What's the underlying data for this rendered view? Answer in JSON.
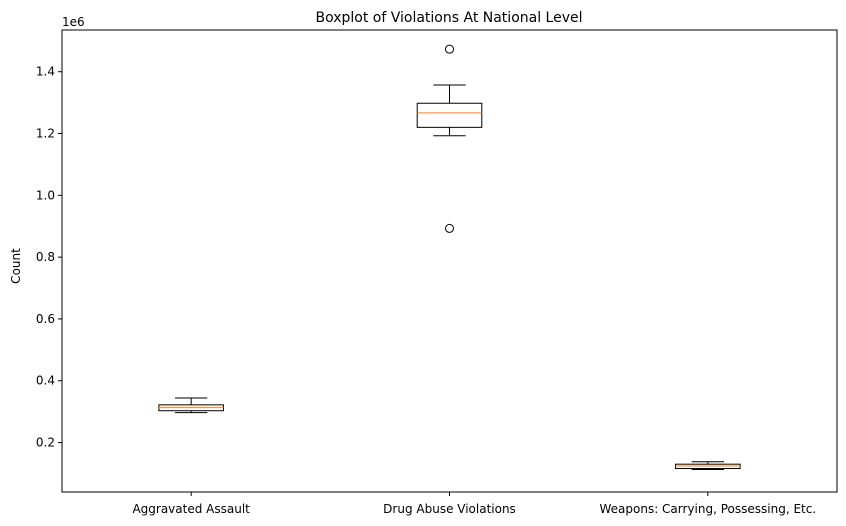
{
  "chart_data": {
    "type": "boxplot",
    "title": "Boxplot of Violations At National Level",
    "xlabel": "",
    "ylabel": "Count",
    "y_scale_label": "1e6",
    "ylim": [
      40000,
      1535000
    ],
    "yticks": [
      0.2,
      0.4,
      0.6,
      0.8,
      1.0,
      1.2,
      1.4
    ],
    "yticks_multiplier": 1000000,
    "grid": false,
    "categories": [
      "Aggravated Assault",
      "Drug Abuse Violations",
      "Weapons: Carrying, Possessing, Etc."
    ],
    "boxes": [
      {
        "label": "Aggravated Assault",
        "whisker_low": 297000,
        "q1": 303000,
        "median": 313000,
        "q3": 322000,
        "whisker_high": 344000,
        "outliers": []
      },
      {
        "label": "Drug Abuse Violations",
        "whisker_low": 1193000,
        "q1": 1220000,
        "median": 1267000,
        "q3": 1298000,
        "whisker_high": 1357000,
        "outliers": [
          893000,
          1473000
        ]
      },
      {
        "label": "Weapons: Carrying, Possessing, Etc.",
        "whisker_low": 113000,
        "q1": 116000,
        "median": 124000,
        "q3": 130000,
        "whisker_high": 138000,
        "outliers": []
      }
    ],
    "colors": {
      "box": "#000000",
      "median": "#ff7f0e",
      "axis": "#000000"
    }
  }
}
